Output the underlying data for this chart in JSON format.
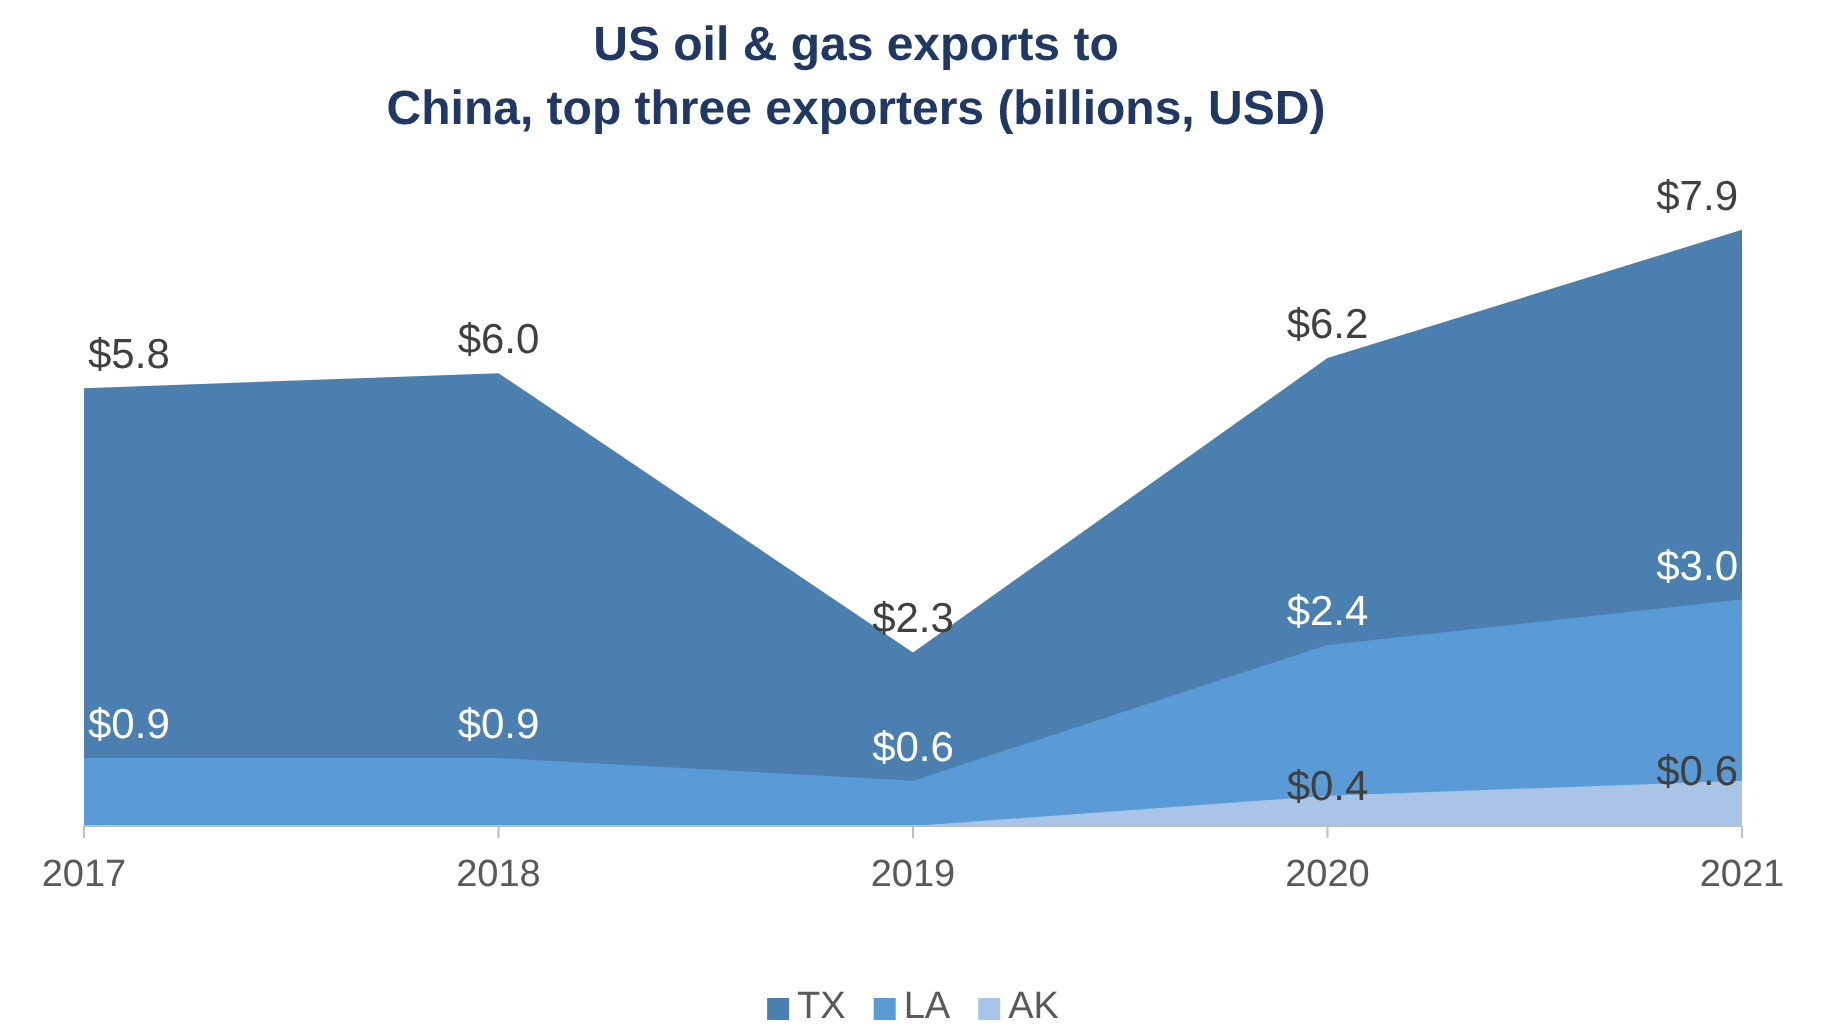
{
  "chart_data": {
    "type": "area",
    "title": "US oil & gas exports to China, top three exporters (billions, USD)",
    "categories": [
      "2017",
      "2018",
      "2019",
      "2020",
      "2021"
    ],
    "tick_labels": "x",
    "legend": "bottom",
    "series": [
      {
        "name": "TX",
        "color": "#4a7fb0",
        "values": [
          5.8,
          6.0,
          2.3,
          6.2,
          7.9
        ],
        "value_labels": [
          "$5.8",
          "$6.0",
          "$2.3",
          "$6.2",
          "$7.9"
        ]
      },
      {
        "name": "LA",
        "color": "#5b9bd5",
        "values": [
          0.9,
          0.9,
          0.6,
          2.4,
          3.0
        ],
        "value_labels": [
          "$0.9",
          "$0.9",
          "$0.6",
          "$2.4",
          "$3.0"
        ]
      },
      {
        "name": "AK",
        "color": "#a9c4e6",
        "values": [
          0,
          0,
          0,
          0.4,
          0.6
        ],
        "value_labels": [
          null,
          null,
          null,
          "$0.4",
          "$0.6"
        ]
      }
    ]
  }
}
